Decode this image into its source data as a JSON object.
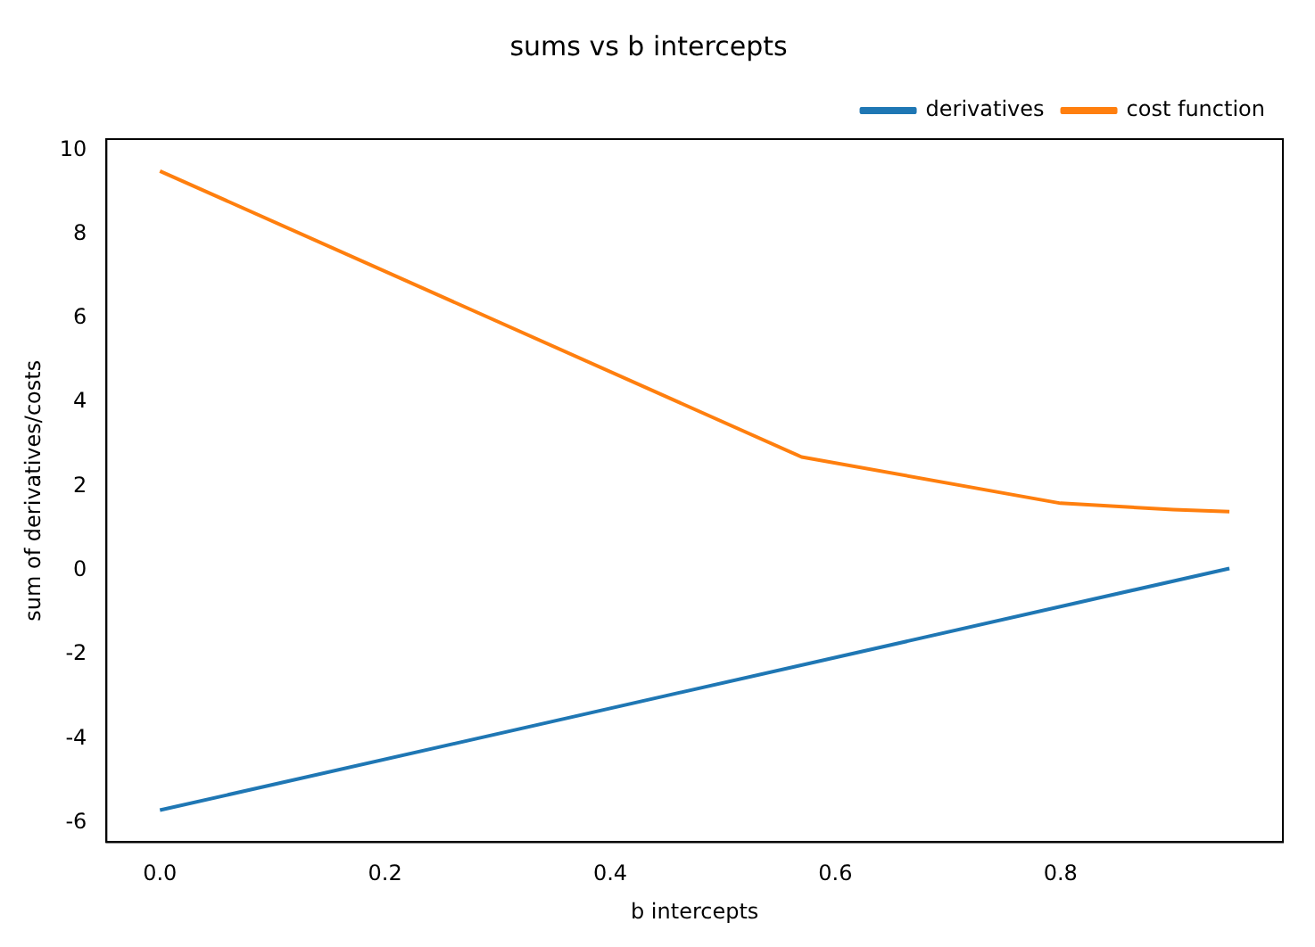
{
  "chart_data": {
    "type": "line",
    "title": "sums vs b intercepts",
    "xlabel": "b intercepts",
    "ylabel": "sum of derivatives/costs",
    "series": [
      {
        "name": "derivatives",
        "color": "#1f77b4",
        "x": [
          0,
          0.95
        ],
        "values": [
          -5.7,
          0.05
        ]
      },
      {
        "name": "cost function",
        "color": "#ff7f0e",
        "x": [
          0,
          0.57,
          0.8,
          0.9,
          0.95
        ],
        "values": [
          9.5,
          2.7,
          1.6,
          1.45,
          1.4
        ]
      }
    ],
    "xlim": [
      -0.0475,
      0.9975
    ],
    "xticks": [
      {
        "value": 0,
        "label": "0.0"
      },
      {
        "value": 0.2,
        "label": "0.2"
      },
      {
        "value": 0.4,
        "label": "0.4"
      },
      {
        "value": 0.6,
        "label": "0.6"
      },
      {
        "value": 0.8,
        "label": "0.8"
      }
    ],
    "ylim": [
      -6.46,
      10.26
    ],
    "yticks": [
      -6,
      -4,
      -2,
      0,
      2,
      4,
      6,
      8,
      10
    ],
    "grid": false,
    "legend": "top right",
    "marker": "none",
    "line_style": "solid"
  }
}
